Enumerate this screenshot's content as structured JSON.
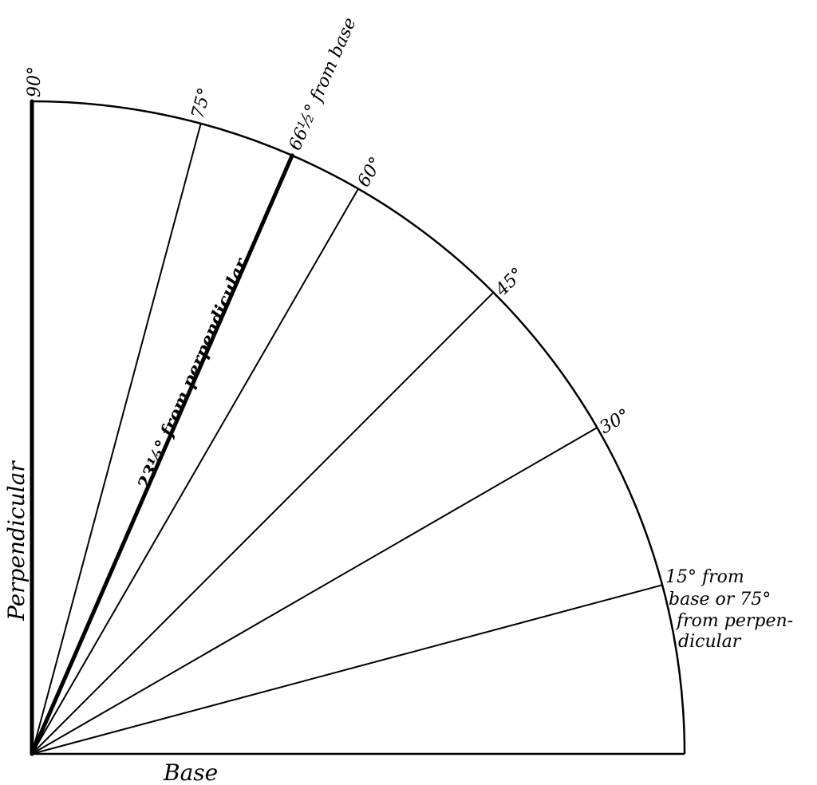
{
  "diagram": {
    "colors": {
      "ink": "#000000",
      "paper": "#ffffff"
    },
    "angles": [
      {
        "angle": 15,
        "weight": "normal"
      },
      {
        "angle": 30,
        "weight": "normal"
      },
      {
        "angle": 45,
        "weight": "normal"
      },
      {
        "angle": 60,
        "weight": "normal"
      },
      {
        "angle": 66.5,
        "weight": "heavy"
      },
      {
        "angle": 75,
        "weight": "normal"
      },
      {
        "angle": 90,
        "weight": "heavy"
      }
    ],
    "labels": {
      "deg_90": "90°",
      "deg_75": "75°",
      "deg_665": "66½° from base",
      "deg_60": "60°",
      "deg_45": "45°",
      "deg_30": "30°",
      "deg_15_line1": "15° from",
      "deg_15_line2": "base or 75°",
      "deg_15_line3": "from perpen-",
      "deg_15_line4": "dicular",
      "from_perpendicular": "23½° from perpendicular",
      "perpendicular": "Perpendicular",
      "base": "Base"
    }
  }
}
